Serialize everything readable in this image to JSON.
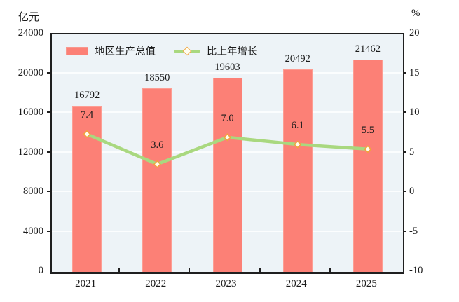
{
  "chart_data": {
    "type": "bar+line combo",
    "categories": [
      "2021",
      "2022",
      "2023",
      "2024",
      "2025"
    ],
    "series": [
      {
        "name": "地区生产总值",
        "type": "bar",
        "axis": "left",
        "unit": "亿元",
        "values": [
          16792,
          18550,
          19603,
          20492,
          21462
        ],
        "labels": [
          "16792",
          "18550",
          "19603",
          "20492",
          "21462"
        ],
        "color": "#fc8076"
      },
      {
        "name": "比上年增长",
        "type": "line",
        "axis": "right",
        "unit": "%",
        "values": [
          7.4,
          3.6,
          7.0,
          6.1,
          5.5
        ],
        "labels": [
          "7.4",
          "3.6",
          "7.0",
          "6.1",
          "5.5"
        ],
        "color": "#a9d87f",
        "marker": "diamond",
        "marker_fill": "#fffdf0",
        "marker_border": "#f0a43c"
      }
    ],
    "left_axis": {
      "unit": "亿元",
      "min": 0,
      "max": 24000,
      "step": 4000,
      "tick_labels": [
        "24000",
        "20000",
        "16000",
        "12000",
        "8000",
        "4000",
        "0"
      ]
    },
    "right_axis": {
      "unit": "%",
      "min": -10,
      "max": 20,
      "step": 5,
      "tick_labels": [
        "20",
        "15",
        "10",
        "5",
        "0",
        "-5",
        "-10"
      ]
    },
    "grid": true,
    "legend_position": "top-left-inside",
    "plot_bg": "#edf3f7",
    "grid_color": "#fbfdfe",
    "frame_color": "#1f1f1f",
    "title": ""
  },
  "legend": {
    "items": [
      {
        "label": "地区生产总值",
        "swatch": "bar"
      },
      {
        "label": "比上年增长",
        "swatch": "line-diamond"
      }
    ]
  }
}
